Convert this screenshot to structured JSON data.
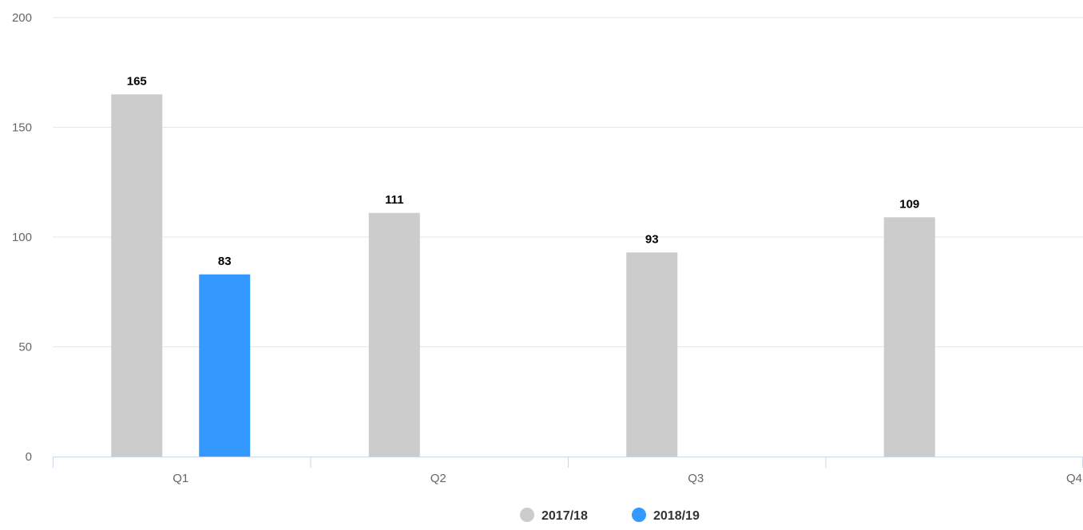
{
  "chart_data": {
    "type": "bar",
    "title": "",
    "xlabel": "",
    "ylabel": "",
    "categories": [
      "Q1",
      "Q2",
      "Q3",
      "Q4"
    ],
    "ylim": [
      0,
      200
    ],
    "yticks": [
      0,
      50,
      100,
      150,
      200
    ],
    "grid": true,
    "legend_position": "bottom-center",
    "series": [
      {
        "name": "2017/18",
        "color": "#cccccc",
        "values": [
          165,
          111,
          93,
          109
        ]
      },
      {
        "name": "2018/19",
        "color": "#3399ff",
        "values": [
          83,
          null,
          null,
          null
        ]
      }
    ]
  }
}
